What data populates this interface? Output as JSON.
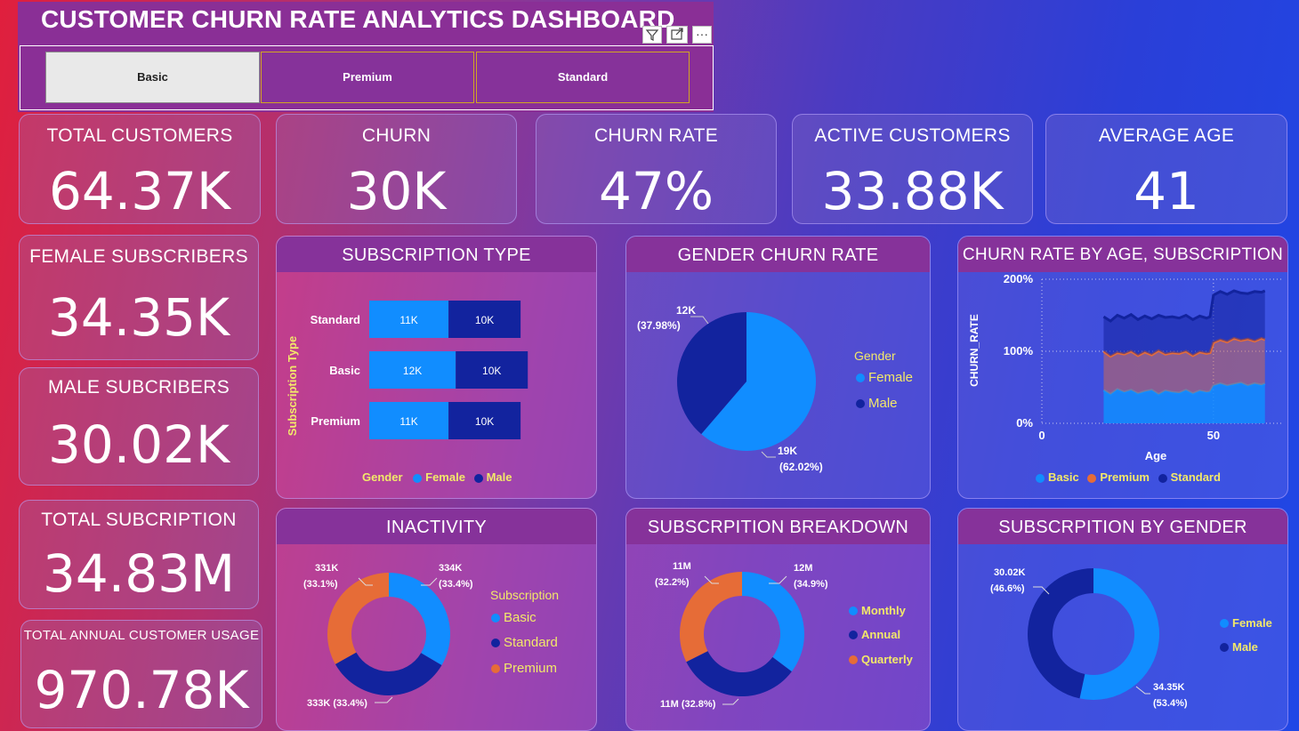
{
  "header": {
    "title": "CUSTOMER CHURN RATE ANALYTICS DASHBOARD"
  },
  "slicer": {
    "options": [
      "Basic",
      "Premium",
      "Standard"
    ],
    "selected": "Basic",
    "icons": [
      "filter-icon",
      "focus-mode-icon",
      "more-options-icon"
    ],
    "more_label": "···"
  },
  "kpis": {
    "total_customers": {
      "label": "TOTAL CUSTOMERS",
      "value": "64.37K"
    },
    "churn": {
      "label": "CHURN",
      "value": "30K"
    },
    "churn_rate": {
      "label": "CHURN RATE",
      "value": "47%"
    },
    "active_customers": {
      "label": "ACTIVE CUSTOMERS",
      "value": "33.88K"
    },
    "average_age": {
      "label": "AVERAGE AGE",
      "value": "41"
    },
    "female_subscribers": {
      "label": "FEMALE SUBSCRIBERS",
      "value": "34.35K"
    },
    "male_subscribers": {
      "label": "MALE SUBCRIBERS",
      "value": "30.02K"
    },
    "total_subscription": {
      "label": "TOTAL SUBCRIPTION",
      "value": "34.83M"
    },
    "total_annual_usage": {
      "label": "TOTAL ANNUAL CUSTOMER USAGE",
      "value": "970.78K"
    }
  },
  "panels": {
    "subscription_type": "SUBSCRIPTION TYPE",
    "gender_churn": "GENDER CHURN RATE",
    "churn_by_age": "CHURN RATE BY AGE, SUBSCRIPTION",
    "inactivity": "INACTIVITY",
    "subscription_breakdown": "SUBSCRPITION BREAKDOWN",
    "subscription_by_gender": "SUBSCRPITION BY GENDER"
  },
  "colors": {
    "light_blue": "#118dff",
    "dark_blue": "#12239e",
    "orange": "#e66c37",
    "legend_title": "#f2e86a"
  },
  "chart_data": [
    {
      "id": "subscription_type",
      "type": "bar",
      "orientation": "horizontal-stacked",
      "ylabel": "Subscription Type",
      "categories": [
        "Standard",
        "Basic",
        "Premium"
      ],
      "series": [
        {
          "name": "Female",
          "values": [
            11,
            12,
            11
          ],
          "labels": [
            "11K",
            "12K",
            "11K"
          ]
        },
        {
          "name": "Male",
          "values": [
            10,
            10,
            10
          ],
          "labels": [
            "10K",
            "10K",
            "10K"
          ]
        }
      ],
      "legend": {
        "title": "Gender",
        "position": "bottom"
      }
    },
    {
      "id": "gender_churn",
      "type": "pie",
      "slices": [
        {
          "name": "Female",
          "value": 19,
          "label": "19K",
          "pct": "(62.02%)"
        },
        {
          "name": "Male",
          "value": 12,
          "label": "12K",
          "pct": "(37.98%)"
        }
      ],
      "legend": {
        "title": "Gender",
        "position": "right"
      }
    },
    {
      "id": "churn_by_age",
      "type": "area",
      "stacked": true,
      "xlabel": "Age",
      "ylabel": "CHURN_RATE",
      "xticks": [
        "0",
        "50"
      ],
      "yticks": [
        "0%",
        "100%",
        "200%"
      ],
      "xlim": [
        0,
        70
      ],
      "ylim": [
        0,
        200
      ],
      "x": [
        18,
        20,
        22,
        24,
        26,
        28,
        30,
        32,
        34,
        36,
        38,
        40,
        42,
        44,
        46,
        48,
        49,
        50,
        52,
        54,
        56,
        58,
        60,
        62,
        64,
        65
      ],
      "series": [
        {
          "name": "Basic",
          "values": [
            46,
            40,
            47,
            43,
            46,
            41,
            44,
            46,
            40,
            45,
            43,
            42,
            46,
            41,
            45,
            43,
            44,
            52,
            55,
            52,
            54,
            56,
            52,
            55,
            53,
            55
          ]
        },
        {
          "name": "Premium",
          "values": [
            100,
            93,
            98,
            96,
            100,
            94,
            99,
            95,
            101,
            96,
            98,
            97,
            100,
            94,
            99,
            97,
            98,
            112,
            116,
            113,
            118,
            115,
            117,
            114,
            118,
            116
          ]
        },
        {
          "name": "Standard",
          "values": [
            148,
            142,
            150,
            146,
            151,
            144,
            149,
            145,
            150,
            147,
            148,
            146,
            150,
            144,
            149,
            146,
            148,
            178,
            183,
            179,
            184,
            181,
            180,
            183,
            182,
            184
          ]
        }
      ],
      "legend": {
        "position": "bottom"
      }
    },
    {
      "id": "inactivity",
      "type": "pie",
      "donut": true,
      "slices": [
        {
          "name": "Basic",
          "value": 334,
          "label": "334K",
          "pct": "(33.4%)"
        },
        {
          "name": "Standard",
          "value": 333,
          "label": "333K (33.4%)"
        },
        {
          "name": "Premium",
          "value": 331,
          "label": "331K",
          "pct": "(33.1%)"
        }
      ],
      "legend": {
        "title": "Subscription",
        "position": "right"
      }
    },
    {
      "id": "subscription_breakdown",
      "type": "pie",
      "donut": true,
      "slices": [
        {
          "name": "Monthly",
          "value": 12,
          "label": "12M",
          "pct": "(34.9%)"
        },
        {
          "name": "Annual",
          "value": 11,
          "label": "11M (32.8%)"
        },
        {
          "name": "Quarterly",
          "value": 11,
          "label": "11M",
          "pct": "(32.2%)"
        }
      ],
      "legend": {
        "position": "right"
      }
    },
    {
      "id": "subscription_by_gender",
      "type": "pie",
      "donut": true,
      "slices": [
        {
          "name": "Female",
          "value": 34.35,
          "label": "34.35K",
          "pct": "(53.4%)"
        },
        {
          "name": "Male",
          "value": 30.02,
          "label": "30.02K",
          "pct": "(46.6%)"
        }
      ],
      "legend": {
        "position": "right"
      }
    }
  ]
}
